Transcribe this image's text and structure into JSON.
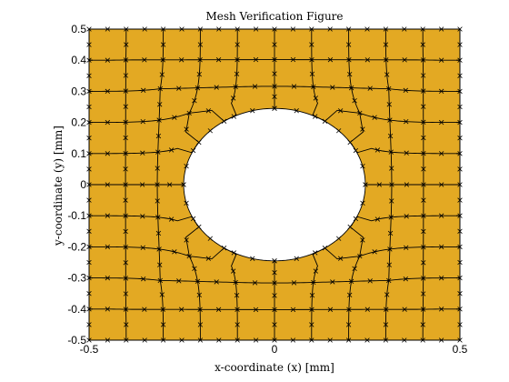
{
  "chart_data": {
    "type": "mesh",
    "title": "Mesh Verification Figure",
    "xlabel": "x-coordinate (x) [mm]",
    "ylabel": "y-coordinate (y) [mm]",
    "xlim": [
      -0.5,
      0.5
    ],
    "ylim": [
      -0.5,
      0.5
    ],
    "xticks": [
      "-0.5",
      "0",
      "0.5"
    ],
    "yticks": [
      "-0.5",
      "-0.4",
      "-0.3",
      "-0.2",
      "-0.1",
      "0",
      "0.1",
      "0.2",
      "0.3",
      "0.4",
      "0.5"
    ],
    "hole_center": [
      0,
      0
    ],
    "hole_semi_axes": [
      0.245,
      0.245
    ],
    "fill_color": "#e3a923",
    "hole_color": "#ffffff",
    "line_color": "#000000",
    "marker": "x",
    "grid": false,
    "mesh_x_lines": [
      -0.5,
      -0.4,
      -0.3,
      -0.2,
      -0.1,
      0,
      0.1,
      0.2,
      0.3,
      0.4,
      0.5
    ],
    "mesh_y_lines": [
      -0.5,
      -0.4,
      -0.3,
      -0.2,
      -0.1,
      0,
      0.1,
      0.2,
      0.3,
      0.4,
      0.5
    ]
  }
}
